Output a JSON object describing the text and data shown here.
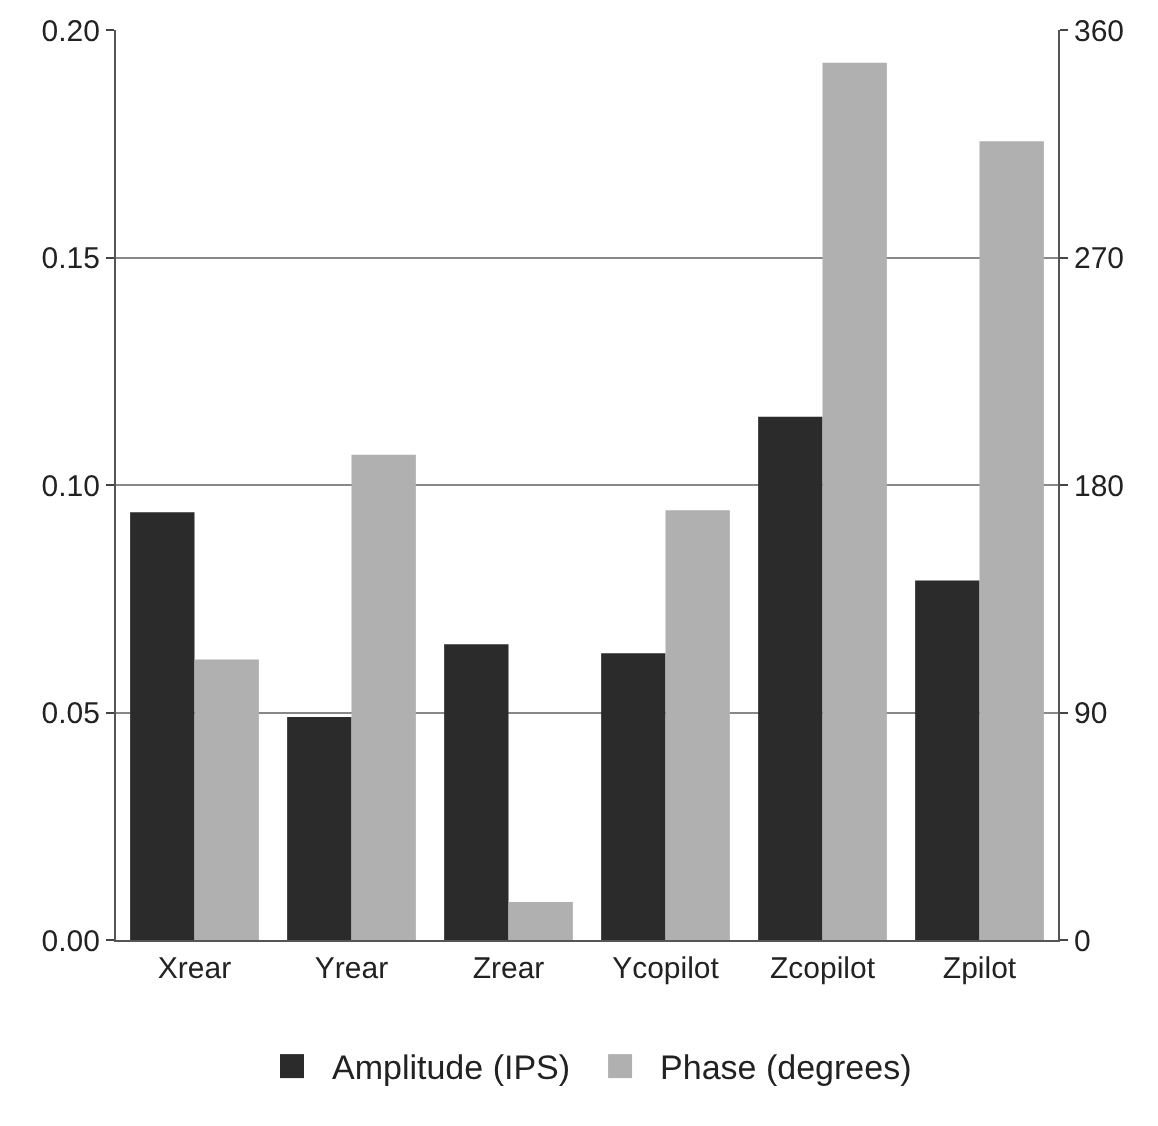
{
  "chart_data": {
    "type": "bar",
    "categories": [
      "Xrear",
      "Yrear",
      "Zrear",
      "Ycopilot",
      "Zcopilot",
      "Zpilot"
    ],
    "series": [
      {
        "name": "Amplitude (IPS)",
        "color": "#2b2b2b",
        "values": [
          0.094,
          0.049,
          0.065,
          0.063,
          0.115,
          0.079
        ]
      },
      {
        "name": "Phase (degrees)",
        "color": "#b0b0b0",
        "axis": "y2",
        "values": [
          111,
          192,
          15,
          170,
          347,
          316
        ]
      }
    ],
    "ylim": [
      0,
      0.2
    ],
    "yticks": [
      {
        "value": 0,
        "label": "0.00"
      },
      {
        "value": 0.05,
        "label": "0.05"
      },
      {
        "value": 0.1,
        "label": "0.10"
      },
      {
        "value": 0.15,
        "label": "0.15"
      },
      {
        "value": 0.2,
        "label": "0.20"
      }
    ],
    "y2lim": [
      0,
      360
    ],
    "y2ticks": [
      0,
      90,
      180,
      270,
      360
    ],
    "grid": "y",
    "legend": "bottom"
  }
}
